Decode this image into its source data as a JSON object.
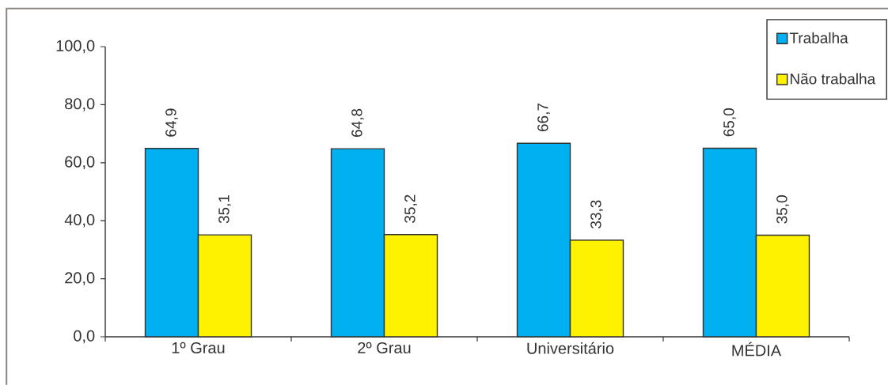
{
  "chart_data": {
    "type": "bar",
    "categories": [
      "1º Grau",
      "2º Grau",
      "Universitário",
      "MÉDIA"
    ],
    "series": [
      {
        "name": "Trabalha",
        "color": "#00b0f0",
        "values": [
          64.9,
          64.8,
          66.7,
          65.0
        ],
        "value_labels": [
          "64,9",
          "64,8",
          "66,7",
          "65,0"
        ]
      },
      {
        "name": "Não trabalha",
        "color": "#fff200",
        "values": [
          35.1,
          35.2,
          33.3,
          35.0
        ],
        "value_labels": [
          "35,1",
          "35,2",
          "33,3",
          "35,0"
        ]
      }
    ],
    "ylim": [
      0,
      100
    ],
    "yticks": [
      {
        "value": 0,
        "label": "0,0"
      },
      {
        "value": 20,
        "label": "20,0"
      },
      {
        "value": 40,
        "label": "40,0"
      },
      {
        "value": 60,
        "label": "60,0"
      },
      {
        "value": 80,
        "label": "80,0"
      },
      {
        "value": 100,
        "label": "100,0"
      }
    ],
    "legend": "top right"
  }
}
